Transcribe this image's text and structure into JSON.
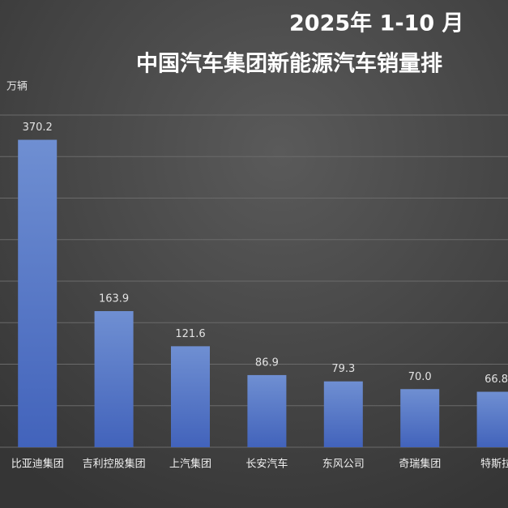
{
  "chart_data": {
    "type": "bar",
    "title": "2025年 1-10 月",
    "subtitle": "中国汽车集团新能源汽车销量排",
    "y_label": "万辆",
    "categories": [
      "比亚迪集团",
      "吉利控股集团",
      "上汽集团",
      "长安汽车",
      "东风公司",
      "奇瑞集团",
      "特斯拉"
    ],
    "values": [
      370.2,
      163.9,
      121.6,
      86.9,
      79.3,
      70.0,
      66.8
    ],
    "value_labels": [
      "370.2",
      "163.9",
      "121.6",
      "86.9",
      "79.3",
      "70.0",
      "66.8"
    ],
    "color": "#5778c8",
    "ylim": [
      0,
      400
    ],
    "yticks": [
      0,
      50,
      100,
      150,
      200,
      250,
      300,
      350,
      400
    ],
    "grid": true
  }
}
